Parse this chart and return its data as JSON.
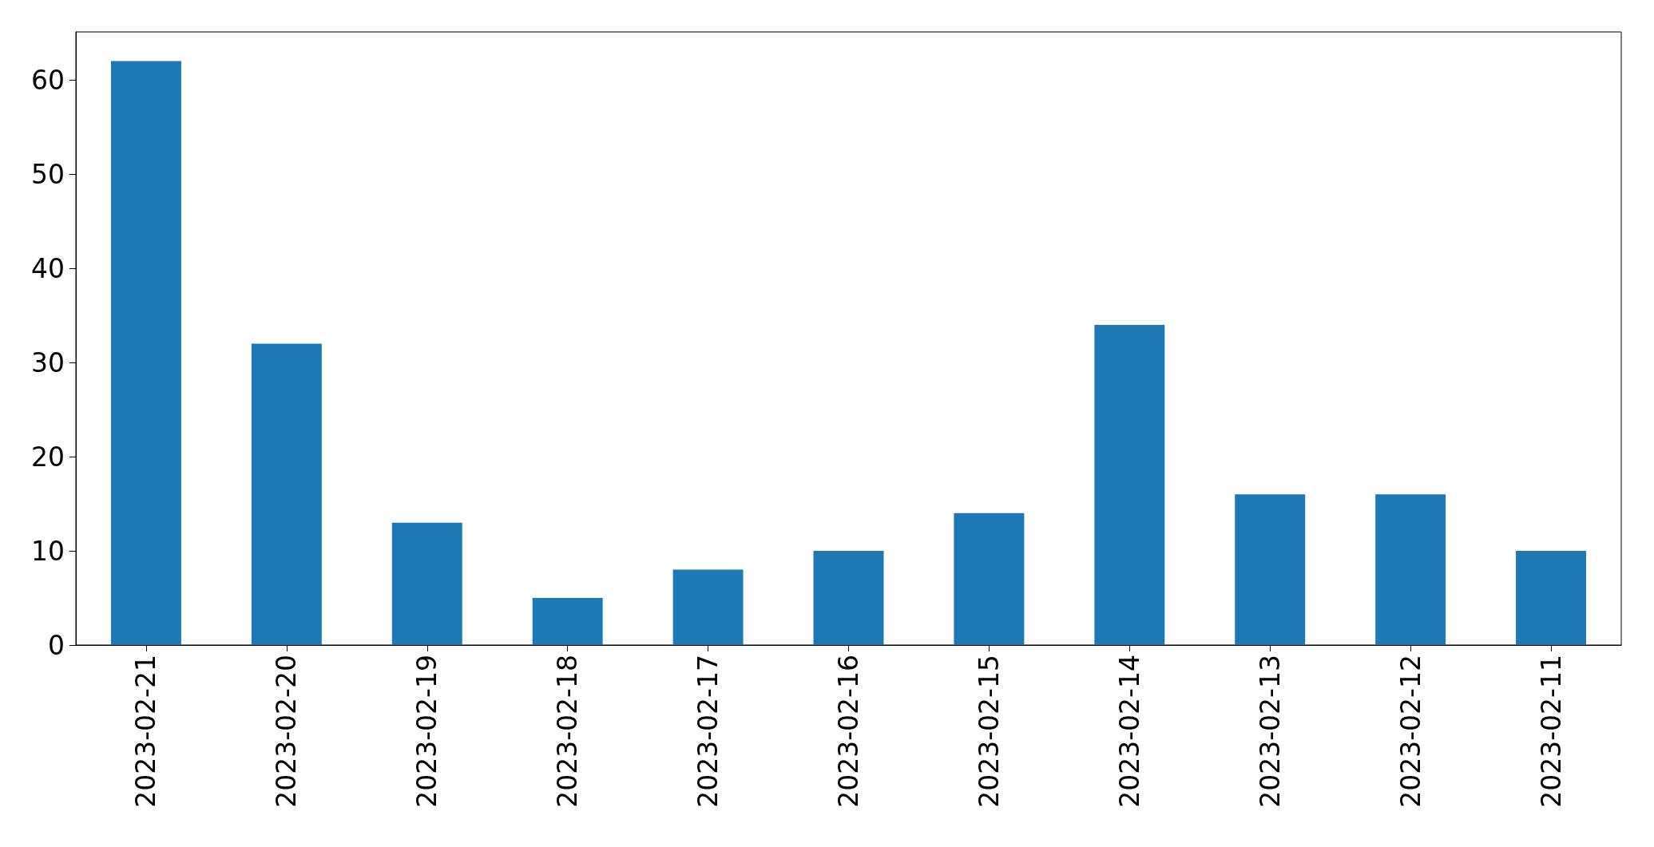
{
  "chart_data": {
    "type": "bar",
    "categories": [
      "2023-02-21",
      "2023-02-20",
      "2023-02-19",
      "2023-02-18",
      "2023-02-17",
      "2023-02-16",
      "2023-02-15",
      "2023-02-14",
      "2023-02-13",
      "2023-02-12",
      "2023-02-11"
    ],
    "values": [
      62,
      32,
      13,
      5,
      8,
      10,
      14,
      34,
      16,
      16,
      10
    ],
    "color": "#1f77b4",
    "ylim": [
      0,
      65.1
    ],
    "yticks": [
      0,
      10,
      20,
      30,
      40,
      50,
      60
    ],
    "grid": false
  }
}
